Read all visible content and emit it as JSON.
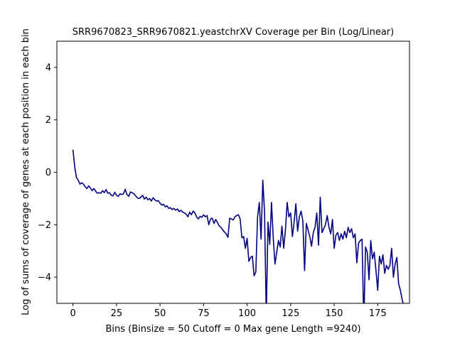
{
  "chart_data": {
    "type": "line",
    "title": "SRR9670823_SRR9670821.yeastchrXV Coverage per Bin (Log/Linear)",
    "xlabel": "Bins  (Binsize = 50 Cutoff = 0 Max gene Length =9240)",
    "ylabel": "Log of sums of coverage of genes at each position in each bin",
    "xlim": [
      -9.25,
      193.25
    ],
    "ylim": [
      -5,
      5
    ],
    "xticks": [
      0,
      25,
      50,
      75,
      100,
      125,
      150,
      175
    ],
    "yticks": [
      -4,
      -2,
      0,
      2,
      4
    ],
    "grid": false,
    "line_color": "#000080",
    "series": [
      {
        "values": [
          0.86,
          0.2,
          -0.2,
          -0.3,
          -0.45,
          -0.4,
          -0.45,
          -0.55,
          -0.62,
          -0.52,
          -0.6,
          -0.7,
          -0.62,
          -0.72,
          -0.8,
          -0.78,
          -0.8,
          -0.7,
          -0.78,
          -0.66,
          -0.8,
          -0.78,
          -0.88,
          -0.9,
          -0.76,
          -0.88,
          -0.92,
          -0.82,
          -0.85,
          -0.82,
          -0.65,
          -0.85,
          -0.92,
          -0.75,
          -0.78,
          -0.82,
          -0.9,
          -0.98,
          -1.0,
          -0.95,
          -0.88,
          -1.02,
          -0.95,
          -1.05,
          -1.0,
          -1.1,
          -0.97,
          -1.05,
          -1.1,
          -1.08,
          -1.18,
          -1.25,
          -1.22,
          -1.32,
          -1.28,
          -1.38,
          -1.35,
          -1.42,
          -1.38,
          -1.45,
          -1.4,
          -1.5,
          -1.45,
          -1.52,
          -1.55,
          -1.6,
          -1.7,
          -1.52,
          -1.62,
          -1.48,
          -1.55,
          -1.7,
          -1.78,
          -1.68,
          -1.72,
          -1.62,
          -1.7,
          -1.65,
          -2.0,
          -1.78,
          -1.75,
          -1.95,
          -1.8,
          -1.92,
          -2.05,
          -2.1,
          -2.2,
          -2.28,
          -2.35,
          -2.48,
          -1.75,
          -1.78,
          -1.82,
          -1.7,
          -1.65,
          -1.62,
          -1.78,
          -2.5,
          -2.45,
          -2.9,
          -2.52,
          -3.4,
          -3.25,
          -3.2,
          -3.95,
          -3.8,
          -1.7,
          -1.15,
          -2.55,
          -0.3,
          -1.5,
          -5.5,
          -1.9,
          -2.75,
          -1.15,
          -2.5,
          -3.5,
          -3.05,
          -2.6,
          -2.85,
          -2.05,
          -2.9,
          -2.2,
          -1.15,
          -1.7,
          -1.55,
          -2.45,
          -1.9,
          -1.2,
          -2.25,
          -1.7,
          -1.48,
          -1.85,
          -3.75,
          -1.95,
          -2.2,
          -2.45,
          -2.82,
          -2.3,
          -2.1,
          -1.55,
          -2.78,
          -0.95,
          -2.3,
          -2.15,
          -2.0,
          -1.65,
          -2.1,
          -2.35,
          -1.8,
          -2.9,
          -2.4,
          -2.3,
          -2.6,
          -2.35,
          -2.55,
          -2.25,
          -2.5,
          -2.1,
          -2.3,
          -2.15,
          -2.5,
          -2.35,
          -3.45,
          -2.7,
          -2.6,
          -2.55,
          -5.8,
          -2.85,
          -3.05,
          -4.1,
          -2.6,
          -3.3,
          -3.05,
          -3.75,
          -4.5,
          -3.2,
          -3.5,
          -3.15,
          -3.85,
          -3.55,
          -3.7,
          -3.55,
          -2.9,
          -4.0,
          -3.5,
          -3.25,
          -4.25,
          -4.5,
          -4.85,
          -5.1
        ]
      }
    ]
  }
}
